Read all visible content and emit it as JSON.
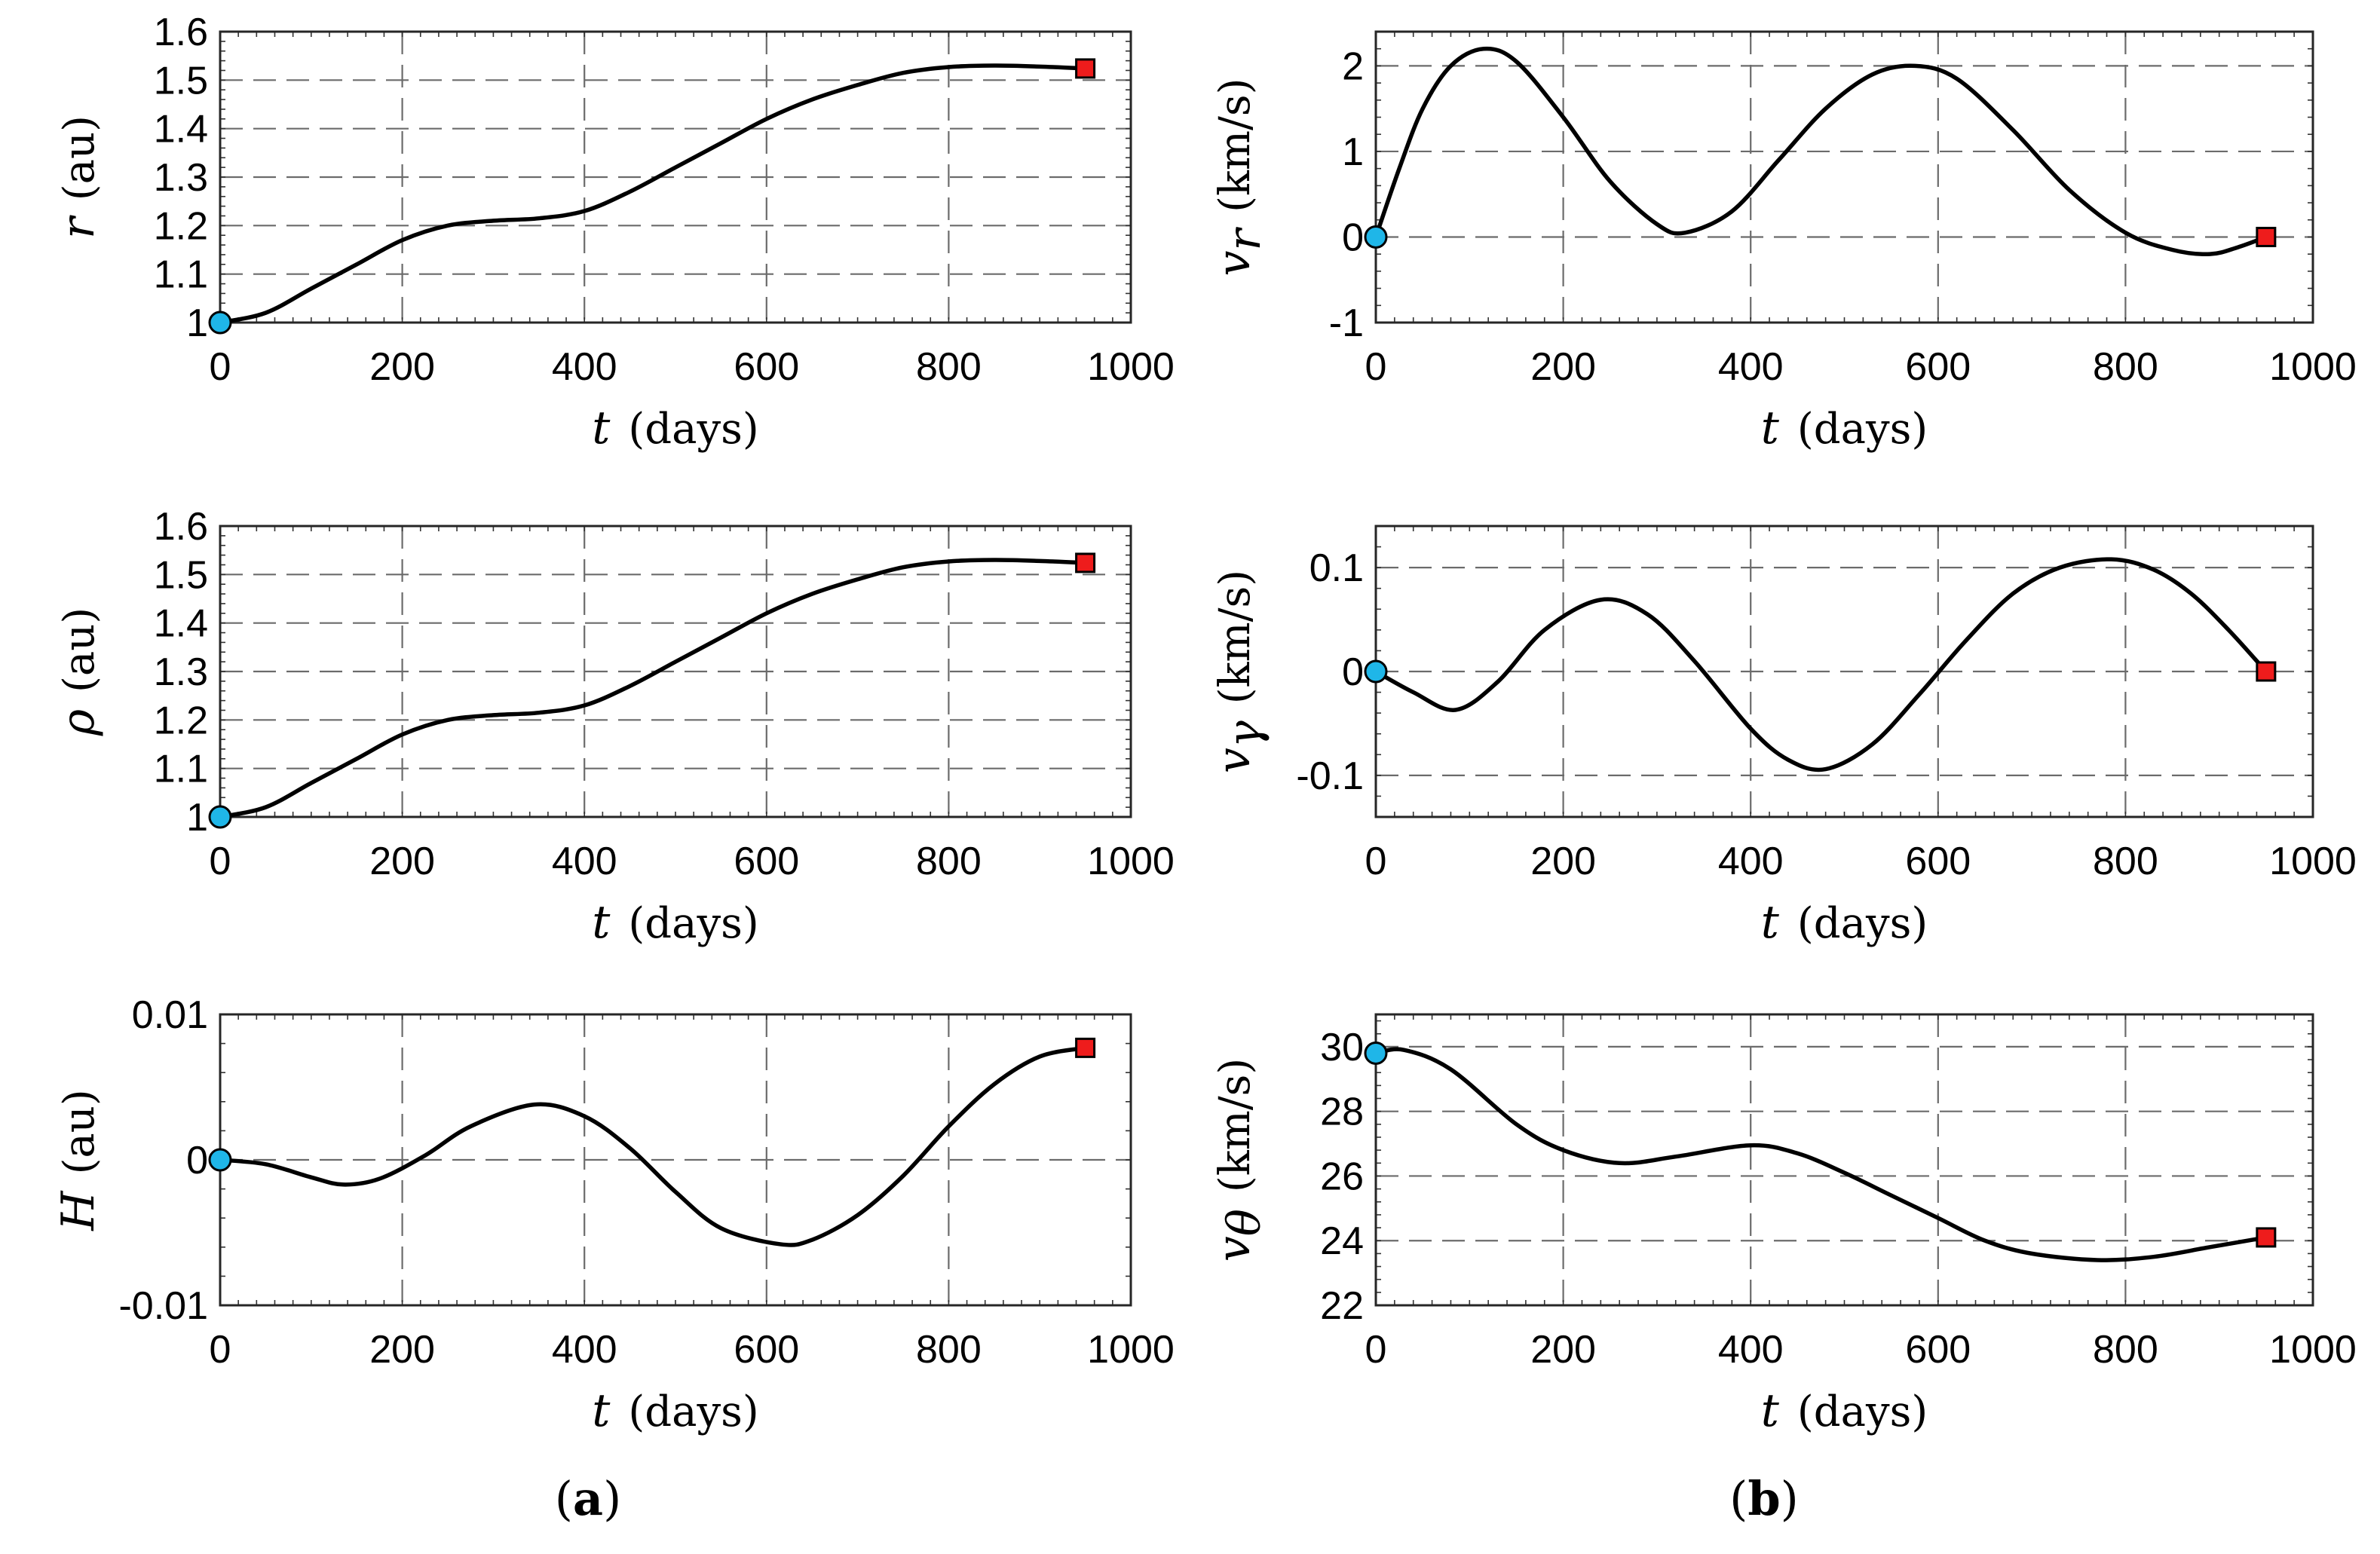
{
  "figure_labels": {
    "a": {
      "open": "(",
      "letter": "a",
      "close": ")"
    },
    "b": {
      "open": "(",
      "letter": "b",
      "close": ")"
    }
  },
  "colors": {
    "start_marker": "#1fb6e8",
    "end_marker": "#ee1c1c",
    "curve": "#000000",
    "grid": "#6b6b6b"
  },
  "chart_data": [
    {
      "id": "r",
      "type": "line",
      "title": "",
      "ylabel_symbol": "r",
      "ylabel_sub": "",
      "ylabel_unit": "(au)",
      "xlabel_symbol": "t",
      "xlabel_unit": "(days)",
      "xlim": [
        0,
        1000
      ],
      "ylim": [
        1.0,
        1.6
      ],
      "xticks": [
        0,
        200,
        400,
        600,
        800,
        1000
      ],
      "xtick_labels": [
        "0",
        "200",
        "400",
        "600",
        "800",
        "1000"
      ],
      "yticks": [
        1.0,
        1.1,
        1.2,
        1.3,
        1.4,
        1.5,
        1.6
      ],
      "ytick_labels": [
        "1",
        "1.1",
        "1.2",
        "1.3",
        "1.4",
        "1.5",
        "1.6"
      ],
      "x": [
        0,
        50,
        100,
        150,
        200,
        250,
        300,
        350,
        400,
        450,
        500,
        550,
        600,
        650,
        700,
        750,
        800,
        850,
        900,
        950
      ],
      "y": [
        1.0,
        1.02,
        1.07,
        1.12,
        1.17,
        1.2,
        1.21,
        1.215,
        1.23,
        1.27,
        1.32,
        1.37,
        1.42,
        1.46,
        1.49,
        1.515,
        1.527,
        1.53,
        1.528,
        1.524
      ],
      "start": [
        0,
        1.0
      ],
      "end": [
        950,
        1.524
      ]
    },
    {
      "id": "rho",
      "type": "line",
      "title": "",
      "ylabel_symbol": "ρ",
      "ylabel_sub": "",
      "ylabel_unit": "(au)",
      "xlabel_symbol": "t",
      "xlabel_unit": "(days)",
      "xlim": [
        0,
        1000
      ],
      "ylim": [
        1.0,
        1.6
      ],
      "xticks": [
        0,
        200,
        400,
        600,
        800,
        1000
      ],
      "xtick_labels": [
        "0",
        "200",
        "400",
        "600",
        "800",
        "1000"
      ],
      "yticks": [
        1.0,
        1.1,
        1.2,
        1.3,
        1.4,
        1.5,
        1.6
      ],
      "ytick_labels": [
        "1",
        "1.1",
        "1.2",
        "1.3",
        "1.4",
        "1.5",
        "1.6"
      ],
      "x": [
        0,
        50,
        100,
        150,
        200,
        250,
        300,
        350,
        400,
        450,
        500,
        550,
        600,
        650,
        700,
        750,
        800,
        850,
        900,
        950
      ],
      "y": [
        1.0,
        1.02,
        1.07,
        1.12,
        1.17,
        1.2,
        1.21,
        1.215,
        1.23,
        1.27,
        1.32,
        1.37,
        1.42,
        1.46,
        1.49,
        1.515,
        1.527,
        1.53,
        1.528,
        1.524
      ],
      "start": [
        0,
        1.0
      ],
      "end": [
        950,
        1.524
      ]
    },
    {
      "id": "H",
      "type": "line",
      "title": "",
      "ylabel_symbol": "H",
      "ylabel_sub": "",
      "ylabel_unit": "(au)",
      "xlabel_symbol": "t",
      "xlabel_unit": "(days)",
      "xlim": [
        0,
        1000
      ],
      "ylim": [
        -0.01,
        0.01
      ],
      "xticks": [
        0,
        200,
        400,
        600,
        800,
        1000
      ],
      "xtick_labels": [
        "0",
        "200",
        "400",
        "600",
        "800",
        "1000"
      ],
      "yticks": [
        -0.01,
        0,
        0.01
      ],
      "ytick_labels": [
        "-0.01",
        "0",
        "0.01"
      ],
      "x": [
        0,
        50,
        100,
        135,
        175,
        225,
        275,
        345,
        400,
        450,
        500,
        550,
        615,
        650,
        700,
        750,
        800,
        850,
        900,
        950
      ],
      "y": [
        0,
        -0.0003,
        -0.0012,
        -0.0017,
        -0.0013,
        0.0003,
        0.0023,
        0.0038,
        0.003,
        0.0008,
        -0.0022,
        -0.0047,
        -0.0058,
        -0.0055,
        -0.0038,
        -0.0011,
        0.0023,
        0.0052,
        0.0071,
        0.0077
      ],
      "start": [
        0,
        0
      ],
      "end": [
        950,
        0.0077
      ]
    },
    {
      "id": "vr",
      "type": "line",
      "title": "",
      "ylabel_symbol": "v",
      "ylabel_sub": "r",
      "ylabel_unit": "(km/s)",
      "xlabel_symbol": "t",
      "xlabel_unit": "(days)",
      "xlim": [
        0,
        1000
      ],
      "ylim": [
        -1,
        2.4
      ],
      "xticks": [
        0,
        200,
        400,
        600,
        800,
        1000
      ],
      "xtick_labels": [
        "0",
        "200",
        "400",
        "600",
        "800",
        "1000"
      ],
      "yticks": [
        -1,
        0,
        1,
        2
      ],
      "ytick_labels": [
        "-1",
        "0",
        "1",
        "2"
      ],
      "x": [
        0,
        25,
        50,
        80,
        115,
        150,
        200,
        250,
        300,
        330,
        380,
        430,
        480,
        530,
        575,
        620,
        680,
        740,
        800,
        850,
        890,
        920,
        950
      ],
      "y": [
        0,
        0.8,
        1.5,
        2.0,
        2.2,
        2.05,
        1.4,
        0.65,
        0.15,
        0.05,
        0.3,
        0.9,
        1.5,
        1.9,
        2.0,
        1.85,
        1.25,
        0.55,
        0.05,
        -0.15,
        -0.2,
        -0.12,
        0
      ],
      "start": [
        0,
        0
      ],
      "end": [
        950,
        0
      ]
    },
    {
      "id": "vgamma",
      "type": "line",
      "title": "",
      "ylabel_symbol": "v",
      "ylabel_sub": "γ",
      "ylabel_unit": "(km/s)",
      "xlabel_symbol": "t",
      "xlabel_unit": "(days)",
      "xlim": [
        0,
        1000
      ],
      "ylim": [
        -0.14,
        0.14
      ],
      "xticks": [
        0,
        200,
        400,
        600,
        800,
        1000
      ],
      "xtick_labels": [
        "0",
        "200",
        "400",
        "600",
        "800",
        "1000"
      ],
      "yticks": [
        -0.1,
        0,
        0.1
      ],
      "ytick_labels": [
        "-0.1",
        "0",
        "0.1"
      ],
      "x": [
        0,
        40,
        85,
        130,
        180,
        240,
        290,
        340,
        400,
        440,
        480,
        530,
        580,
        630,
        680,
        730,
        785,
        830,
        870,
        910,
        950
      ],
      "y": [
        0,
        -0.02,
        -0.037,
        -0.01,
        0.04,
        0.069,
        0.055,
        0.01,
        -0.055,
        -0.085,
        -0.094,
        -0.07,
        -0.022,
        0.03,
        0.075,
        0.1,
        0.108,
        0.098,
        0.075,
        0.04,
        0
      ],
      "start": [
        0,
        0
      ],
      "end": [
        950,
        0
      ]
    },
    {
      "id": "vtheta",
      "type": "line",
      "title": "",
      "ylabel_symbol": "v",
      "ylabel_sub": "θ",
      "ylabel_unit": "(km/s)",
      "xlabel_symbol": "t",
      "xlabel_unit": "(days)",
      "xlim": [
        0,
        1000
      ],
      "ylim": [
        22,
        31
      ],
      "xticks": [
        0,
        200,
        400,
        600,
        800,
        1000
      ],
      "xtick_labels": [
        "0",
        "200",
        "400",
        "600",
        "800",
        "1000"
      ],
      "yticks": [
        22,
        24,
        26,
        28,
        30
      ],
      "ytick_labels": [
        "22",
        "24",
        "26",
        "28",
        "30"
      ],
      "x": [
        0,
        30,
        80,
        150,
        200,
        260,
        320,
        400,
        450,
        500,
        550,
        600,
        650,
        700,
        770,
        830,
        890,
        950
      ],
      "y": [
        29.8,
        29.9,
        29.3,
        27.6,
        26.8,
        26.4,
        26.6,
        26.95,
        26.7,
        26.1,
        25.4,
        24.7,
        24.0,
        23.6,
        23.4,
        23.5,
        23.8,
        24.1
      ],
      "start": [
        0,
        29.8
      ],
      "end": [
        950,
        24.1
      ]
    }
  ]
}
